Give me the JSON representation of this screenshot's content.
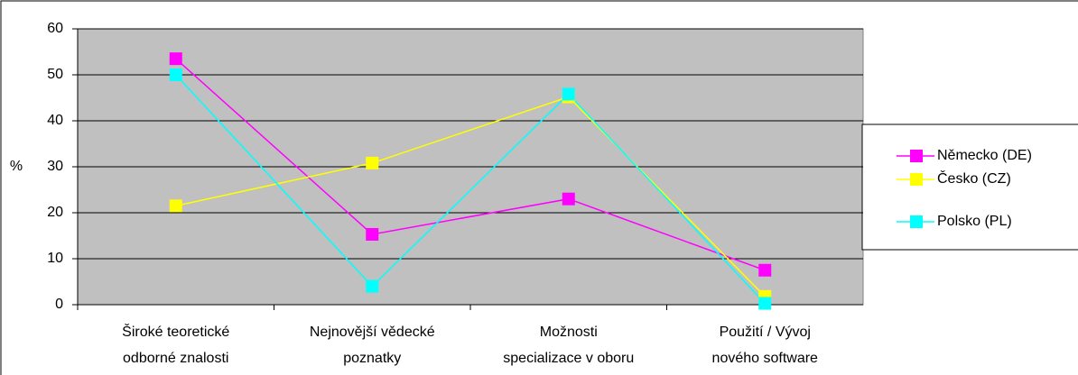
{
  "chart_data": {
    "type": "line",
    "categories": [
      [
        "Široké teoretické",
        "odborné znalosti"
      ],
      [
        "Nejnovější vědecké",
        "poznatky"
      ],
      [
        "Možnosti",
        "specializace v oboru"
      ],
      [
        "Použití / Vývoj",
        "nového software"
      ]
    ],
    "y_label": "%",
    "series": [
      {
        "name": "Německo (DE)",
        "color": "#ff00ff",
        "values": [
          53.5,
          15.3,
          23,
          7.5
        ]
      },
      {
        "name": "Česko (CZ)",
        "color": "#ffff00",
        "values": [
          21.5,
          30.8,
          45.2,
          1.8
        ]
      },
      {
        "name": "Polsko (PL)",
        "color": "#00ffff",
        "values": [
          50,
          4,
          45.8,
          0.3
        ]
      }
    ],
    "ylim": [
      0,
      60
    ],
    "yticks": [
      0,
      10,
      20,
      30,
      40,
      50,
      60
    ],
    "grid": true,
    "legend": "right"
  }
}
